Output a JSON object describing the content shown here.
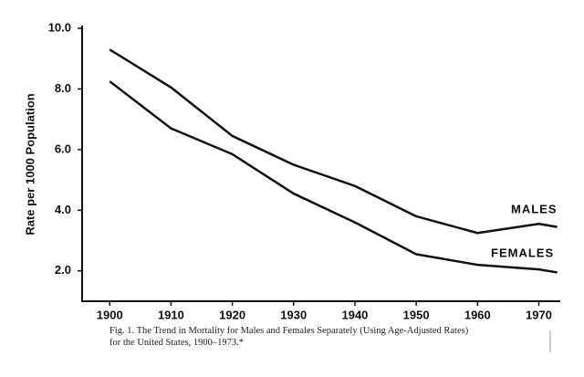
{
  "chart_data": {
    "type": "line",
    "y_label": "Rate per 1000 Population",
    "caption": "Fig. 1. The Trend in Mortality for Males and Females Separately (Using Age-Adjusted Rates) for the United States, 1900–1973.*",
    "x": [
      1900,
      1910,
      1920,
      1930,
      1940,
      1950,
      1960,
      1970,
      1973
    ],
    "series": [
      {
        "name": "MALES",
        "color": "#111111",
        "values": [
          9.3,
          8.05,
          6.45,
          5.5,
          4.8,
          3.8,
          3.25,
          3.55,
          3.45
        ]
      },
      {
        "name": "FEMALES",
        "color": "#111111",
        "values": [
          8.25,
          6.7,
          5.85,
          4.55,
          3.6,
          2.55,
          2.2,
          2.05,
          1.95
        ]
      }
    ],
    "xlim": [
      1895.5,
      1973.5
    ],
    "xticks": [
      1900,
      1910,
      1920,
      1930,
      1940,
      1950,
      1960,
      1970
    ],
    "ylim": [
      1,
      10
    ],
    "yticks": [
      {
        "value": 2,
        "label": "2.0"
      },
      {
        "value": 4,
        "label": "4.0"
      },
      {
        "value": 6,
        "label": "6.0"
      },
      {
        "value": 8,
        "label": "8.0"
      },
      {
        "value": 10,
        "label": "10.0"
      }
    ],
    "grid": false
  }
}
